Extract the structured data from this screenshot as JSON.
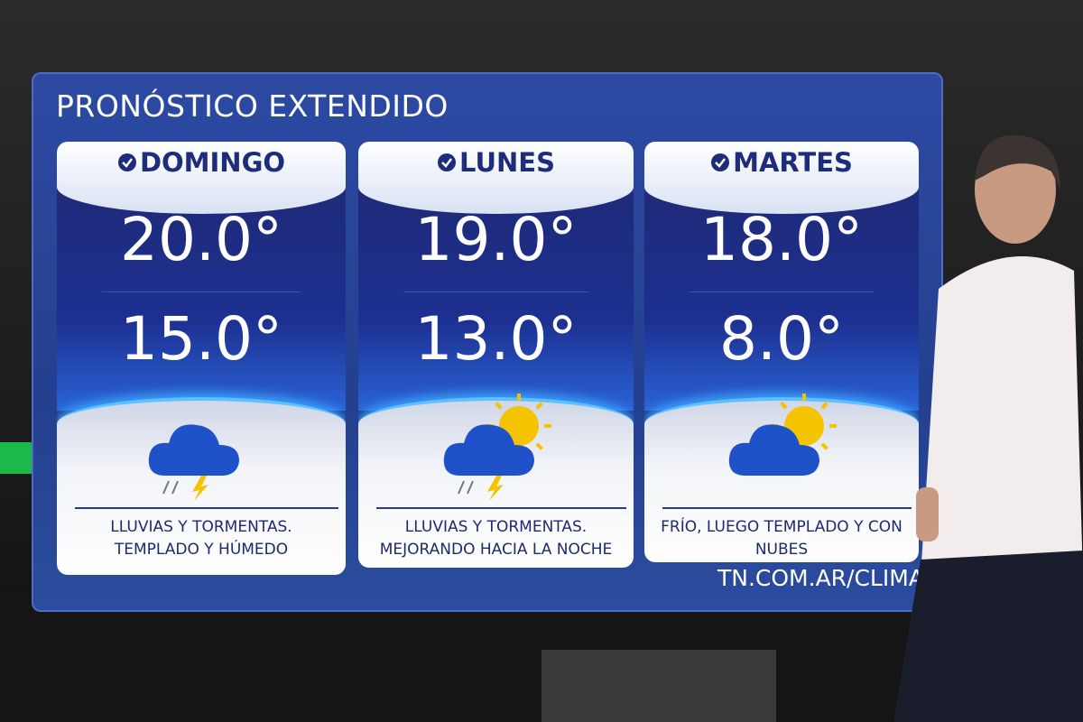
{
  "header": {
    "title": "PRONÓSTICO EXTENDIDO"
  },
  "days": [
    {
      "name": "DOMINGO",
      "max": "20.0°",
      "min": "15.0°",
      "description": [
        "LLUVIAS Y TORMENTAS.",
        "TEMPLADO Y HÚMEDO"
      ]
    },
    {
      "name": "LUNES",
      "max": "19.0°",
      "min": "13.0°",
      "description": [
        "LLUVIAS Y TORMENTAS.",
        "MEJORANDO HACIA LA NOCHE"
      ]
    },
    {
      "name": "MARTES",
      "max": "18.0°",
      "min": "8.0°",
      "description": [
        "FRÍO, LUEGO TEMPLADO Y CON",
        "NUBES"
      ]
    }
  ],
  "footer": {
    "url": "TN.COM.AR/CLIMA"
  }
}
